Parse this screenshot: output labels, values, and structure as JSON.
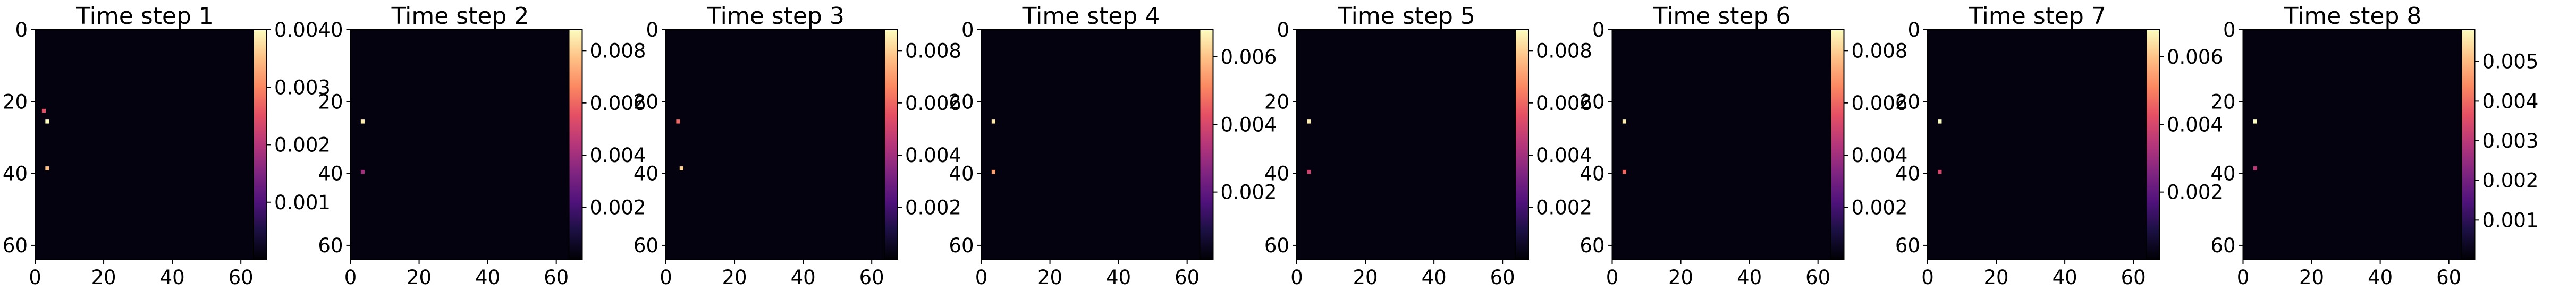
{
  "chart_data": [
    {
      "type": "heatmap",
      "title": "Time step 1",
      "x_ticks": [
        "0",
        "20",
        "40",
        "60"
      ],
      "y_ticks": [
        "0",
        "20",
        "40",
        "60"
      ],
      "xlim": [
        0,
        64
      ],
      "ylim": [
        64,
        0
      ],
      "colormap": "magma",
      "colorbar": {
        "min": 0,
        "max": 0.004,
        "ticks": [
          {
            "value": 0.001,
            "label": "0.001"
          },
          {
            "value": 0.002,
            "label": "0.002"
          },
          {
            "value": 0.003,
            "label": "0.003"
          },
          {
            "value": 0.004,
            "label": "0.004"
          }
        ]
      },
      "hotspots": [
        {
          "x": 3,
          "y": 25,
          "value": 0.004
        },
        {
          "x": 3,
          "y": 38,
          "value": 0.0035
        },
        {
          "x": 2,
          "y": 22,
          "value": 0.0025
        }
      ]
    },
    {
      "type": "heatmap",
      "title": "Time step 2",
      "x_ticks": [
        "0",
        "20",
        "40",
        "60"
      ],
      "y_ticks": [
        "0",
        "20",
        "40",
        "60"
      ],
      "xlim": [
        0,
        64
      ],
      "ylim": [
        64,
        0
      ],
      "colormap": "magma",
      "colorbar": {
        "min": 0,
        "max": 0.0088,
        "ticks": [
          {
            "value": 0.002,
            "label": "0.002"
          },
          {
            "value": 0.004,
            "label": "0.004"
          },
          {
            "value": 0.006,
            "label": "0.006"
          },
          {
            "value": 0.008,
            "label": "0.008"
          }
        ]
      },
      "hotspots": [
        {
          "x": 3,
          "y": 25,
          "value": 0.0085
        },
        {
          "x": 3,
          "y": 39,
          "value": 0.004
        }
      ]
    },
    {
      "type": "heatmap",
      "title": "Time step 3",
      "x_ticks": [
        "0",
        "20",
        "40",
        "60"
      ],
      "y_ticks": [
        "0",
        "20",
        "40",
        "60"
      ],
      "xlim": [
        0,
        64
      ],
      "ylim": [
        64,
        0
      ],
      "colormap": "magma",
      "colorbar": {
        "min": 0,
        "max": 0.0088,
        "ticks": [
          {
            "value": 0.002,
            "label": "0.002"
          },
          {
            "value": 0.004,
            "label": "0.004"
          },
          {
            "value": 0.006,
            "label": "0.006"
          },
          {
            "value": 0.008,
            "label": "0.008"
          }
        ]
      },
      "hotspots": [
        {
          "x": 3,
          "y": 25,
          "value": 0.006
        },
        {
          "x": 4,
          "y": 38,
          "value": 0.008
        }
      ]
    },
    {
      "type": "heatmap",
      "title": "Time step 4",
      "x_ticks": [
        "0",
        "20",
        "40",
        "60"
      ],
      "y_ticks": [
        "0",
        "20",
        "40",
        "60"
      ],
      "xlim": [
        0,
        64
      ],
      "ylim": [
        64,
        0
      ],
      "colormap": "magma",
      "colorbar": {
        "min": 0,
        "max": 0.0068,
        "ticks": [
          {
            "value": 0.002,
            "label": "0.002"
          },
          {
            "value": 0.004,
            "label": "0.004"
          },
          {
            "value": 0.006,
            "label": "0.006"
          }
        ]
      },
      "hotspots": [
        {
          "x": 3,
          "y": 25,
          "value": 0.0065
        },
        {
          "x": 3,
          "y": 39,
          "value": 0.0055
        }
      ]
    },
    {
      "type": "heatmap",
      "title": "Time step 5",
      "x_ticks": [
        "0",
        "20",
        "40",
        "60"
      ],
      "y_ticks": [
        "0",
        "20",
        "40",
        "60"
      ],
      "xlim": [
        0,
        64
      ],
      "ylim": [
        64,
        0
      ],
      "colormap": "magma",
      "colorbar": {
        "min": 0,
        "max": 0.0088,
        "ticks": [
          {
            "value": 0.002,
            "label": "0.002"
          },
          {
            "value": 0.004,
            "label": "0.004"
          },
          {
            "value": 0.006,
            "label": "0.006"
          },
          {
            "value": 0.008,
            "label": "0.008"
          }
        ]
      },
      "hotspots": [
        {
          "x": 3,
          "y": 25,
          "value": 0.0085
        },
        {
          "x": 3,
          "y": 39,
          "value": 0.005
        }
      ]
    },
    {
      "type": "heatmap",
      "title": "Time step 6",
      "x_ticks": [
        "0",
        "20",
        "40",
        "60"
      ],
      "y_ticks": [
        "0",
        "20",
        "40",
        "60"
      ],
      "xlim": [
        0,
        64
      ],
      "ylim": [
        64,
        0
      ],
      "colormap": "magma",
      "colorbar": {
        "min": 0,
        "max": 0.0088,
        "ticks": [
          {
            "value": 0.002,
            "label": "0.002"
          },
          {
            "value": 0.004,
            "label": "0.004"
          },
          {
            "value": 0.006,
            "label": "0.006"
          },
          {
            "value": 0.008,
            "label": "0.008"
          }
        ]
      },
      "hotspots": [
        {
          "x": 3,
          "y": 25,
          "value": 0.0085
        },
        {
          "x": 3,
          "y": 39,
          "value": 0.006
        }
      ]
    },
    {
      "type": "heatmap",
      "title": "Time step 7",
      "x_ticks": [
        "0",
        "20",
        "40",
        "60"
      ],
      "y_ticks": [
        "0",
        "20",
        "40",
        "60"
      ],
      "xlim": [
        0,
        64
      ],
      "ylim": [
        64,
        0
      ],
      "colormap": "magma",
      "colorbar": {
        "min": 0,
        "max": 0.0068,
        "ticks": [
          {
            "value": 0.002,
            "label": "0.002"
          },
          {
            "value": 0.004,
            "label": "0.004"
          },
          {
            "value": 0.006,
            "label": "0.006"
          }
        ]
      },
      "hotspots": [
        {
          "x": 3,
          "y": 25,
          "value": 0.0068
        },
        {
          "x": 3,
          "y": 39,
          "value": 0.004
        }
      ]
    },
    {
      "type": "heatmap",
      "title": "Time step 8",
      "x_ticks": [
        "0",
        "20",
        "40",
        "60"
      ],
      "y_ticks": [
        "0",
        "20",
        "40",
        "60"
      ],
      "xlim": [
        0,
        64
      ],
      "ylim": [
        64,
        0
      ],
      "colormap": "magma",
      "colorbar": {
        "min": 0,
        "max": 0.0058,
        "ticks": [
          {
            "value": 0.001,
            "label": "0.001"
          },
          {
            "value": 0.002,
            "label": "0.002"
          },
          {
            "value": 0.003,
            "label": "0.003"
          },
          {
            "value": 0.004,
            "label": "0.004"
          },
          {
            "value": 0.005,
            "label": "0.005"
          }
        ]
      },
      "hotspots": [
        {
          "x": 3,
          "y": 25,
          "value": 0.0058
        },
        {
          "x": 3,
          "y": 38,
          "value": 0.003
        }
      ]
    }
  ]
}
